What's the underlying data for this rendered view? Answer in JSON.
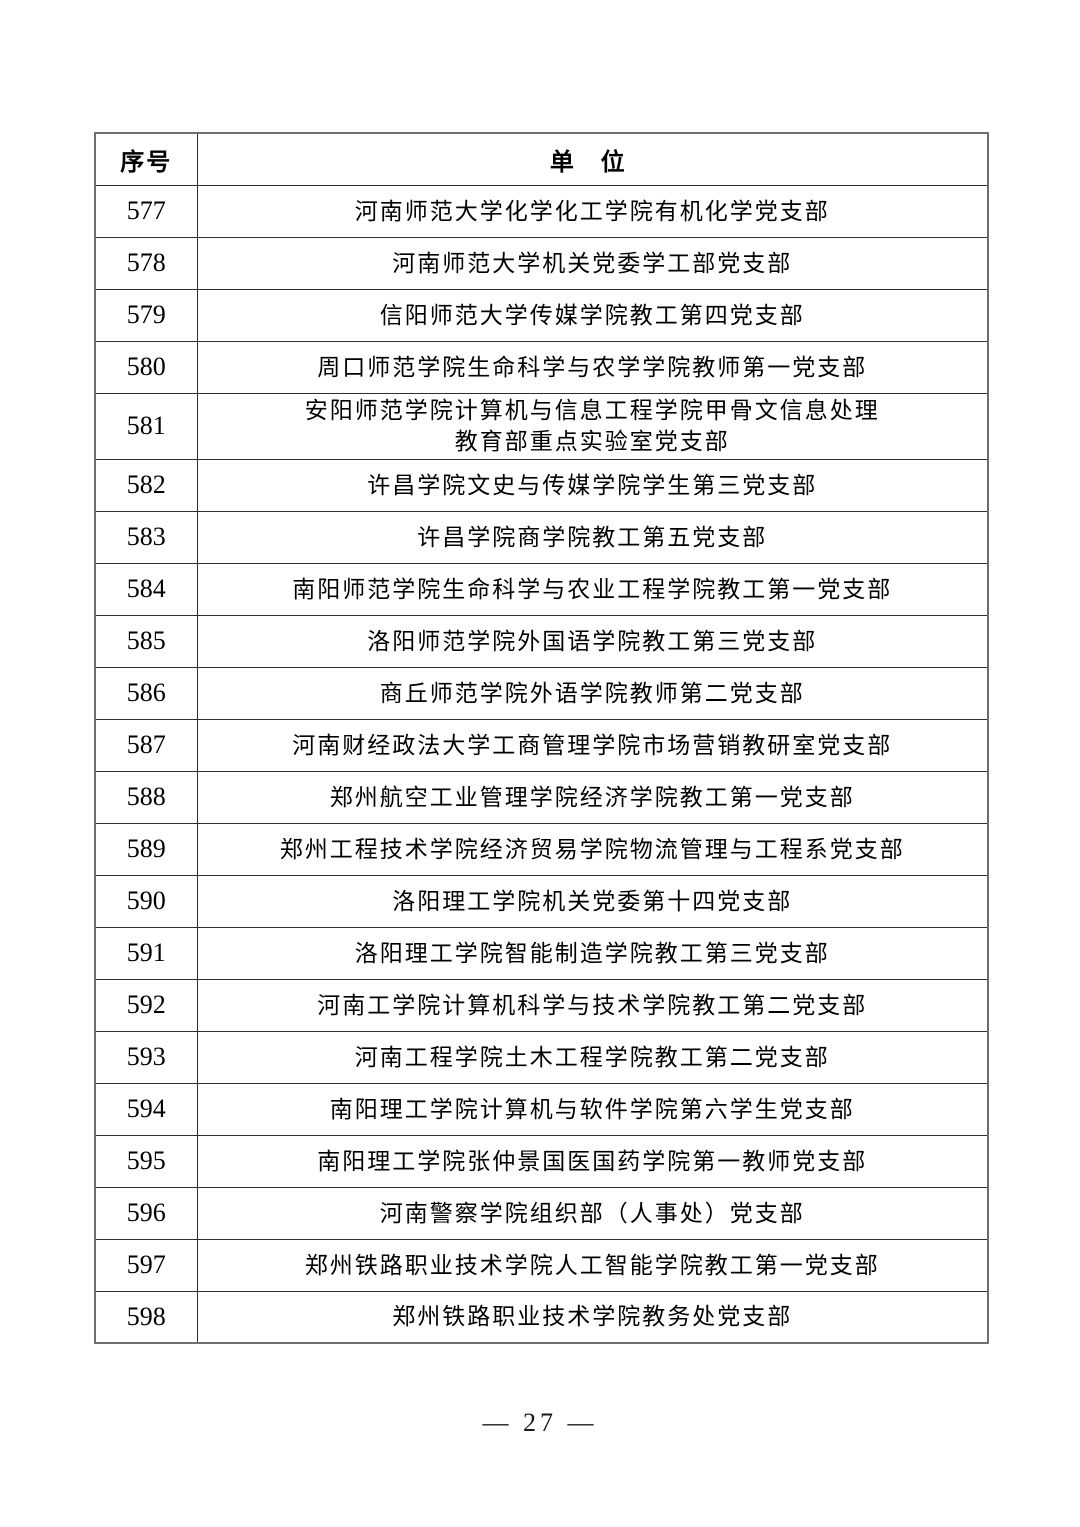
{
  "table": {
    "headers": {
      "index": "序号",
      "unit": "单 位"
    },
    "rows": [
      {
        "no": "577",
        "unit": "河南师范大学化学化工学院有机化学党支部"
      },
      {
        "no": "578",
        "unit": "河南师范大学机关党委学工部党支部"
      },
      {
        "no": "579",
        "unit": "信阳师范大学传媒学院教工第四党支部"
      },
      {
        "no": "580",
        "unit": "周口师范学院生命科学与农学学院教师第一党支部"
      },
      {
        "no": "581",
        "unit": "安阳师范学院计算机与信息工程学院甲骨文信息处理\n教育部重点实验室党支部",
        "tall": true
      },
      {
        "no": "582",
        "unit": "许昌学院文史与传媒学院学生第三党支部"
      },
      {
        "no": "583",
        "unit": "许昌学院商学院教工第五党支部"
      },
      {
        "no": "584",
        "unit": "南阳师范学院生命科学与农业工程学院教工第一党支部"
      },
      {
        "no": "585",
        "unit": "洛阳师范学院外国语学院教工第三党支部"
      },
      {
        "no": "586",
        "unit": "商丘师范学院外语学院教师第二党支部"
      },
      {
        "no": "587",
        "unit": "河南财经政法大学工商管理学院市场营销教研室党支部"
      },
      {
        "no": "588",
        "unit": "郑州航空工业管理学院经济学院教工第一党支部"
      },
      {
        "no": "589",
        "unit": "郑州工程技术学院经济贸易学院物流管理与工程系党支部"
      },
      {
        "no": "590",
        "unit": "洛阳理工学院机关党委第十四党支部"
      },
      {
        "no": "591",
        "unit": "洛阳理工学院智能制造学院教工第三党支部"
      },
      {
        "no": "592",
        "unit": "河南工学院计算机科学与技术学院教工第二党支部"
      },
      {
        "no": "593",
        "unit": "河南工程学院土木工程学院教工第二党支部"
      },
      {
        "no": "594",
        "unit": "南阳理工学院计算机与软件学院第六学生党支部"
      },
      {
        "no": "595",
        "unit": "南阳理工学院张仲景国医国药学院第一教师党支部"
      },
      {
        "no": "596",
        "unit": "河南警察学院组织部（人事处）党支部"
      },
      {
        "no": "597",
        "unit": "郑州铁路职业技术学院人工智能学院教工第一党支部"
      },
      {
        "no": "598",
        "unit": "郑州铁路职业技术学院教务处党支部"
      }
    ]
  },
  "footer": {
    "page_number_label": "— 27 —"
  }
}
